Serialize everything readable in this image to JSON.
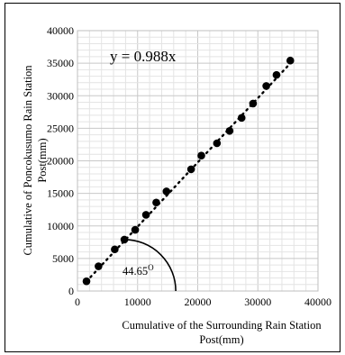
{
  "chart_data": {
    "type": "scatter",
    "xlabel_lines": [
      "Cumulative of the Surrounding Rain Station",
      "Post(mm)"
    ],
    "ylabel_lines": [
      "Cumulative of Poncokusumo Rain Station",
      "Post(mm)"
    ],
    "xlim": [
      0,
      40000
    ],
    "ylim": [
      0,
      40000
    ],
    "xticks": [
      0,
      10000,
      20000,
      30000,
      40000
    ],
    "yticks": [
      0,
      5000,
      10000,
      15000,
      20000,
      25000,
      30000,
      35000,
      40000
    ],
    "grid": true,
    "equation": "y = 0.988x",
    "angle_label": "44.65",
    "angle_label_sup": "O",
    "trendline": {
      "slope": 0.988,
      "style": "dotted",
      "x_range": [
        1500,
        35500
      ]
    },
    "points": [
      {
        "x": 1500,
        "y": 1500
      },
      {
        "x": 3500,
        "y": 3800
      },
      {
        "x": 6200,
        "y": 6400
      },
      {
        "x": 7800,
        "y": 7900
      },
      {
        "x": 9600,
        "y": 9400
      },
      {
        "x": 11400,
        "y": 11700
      },
      {
        "x": 13100,
        "y": 13600
      },
      {
        "x": 14800,
        "y": 15300
      },
      {
        "x": 18900,
        "y": 18700
      },
      {
        "x": 20600,
        "y": 20800
      },
      {
        "x": 23200,
        "y": 22700
      },
      {
        "x": 25300,
        "y": 24600
      },
      {
        "x": 27300,
        "y": 26600
      },
      {
        "x": 29200,
        "y": 28800
      },
      {
        "x": 31400,
        "y": 31500
      },
      {
        "x": 33100,
        "y": 33200
      },
      {
        "x": 35400,
        "y": 35400
      }
    ],
    "angle_arc": {
      "center": [
        7800,
        7900
      ],
      "endpoint_y": 0
    }
  }
}
